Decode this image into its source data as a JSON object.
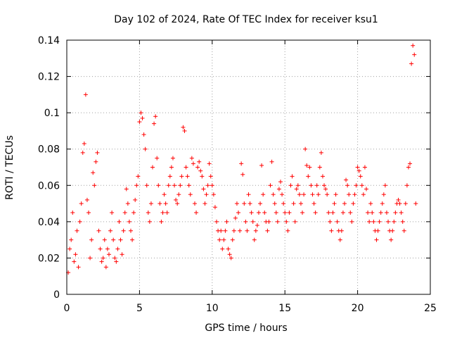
{
  "chart_data": {
    "type": "scatter",
    "title": "Day 102 of 2024, Rate Of TEC Index for receiver ksu1",
    "xlabel": "GPS time / hours",
    "ylabel": "ROTI / TECUs",
    "xlim": [
      0,
      25
    ],
    "ylim": [
      0,
      0.14
    ],
    "xticks": [
      0,
      5,
      10,
      15,
      20,
      25
    ],
    "yticks": [
      0,
      0.02,
      0.04,
      0.06,
      0.08,
      0.1,
      0.12,
      0.14
    ],
    "xtick_labels": [
      "0",
      "5",
      "10",
      "15",
      "20",
      "25"
    ],
    "ytick_labels": [
      "0",
      "0.02",
      "0.04",
      "0.06",
      "0.08",
      "0.1",
      "0.12",
      "0.14"
    ],
    "grid": true,
    "marker": "+",
    "color": "#ff0000",
    "series": [
      {
        "x": [
          0.1,
          0.2,
          0.3,
          0.4,
          0.5,
          0.6,
          0.7,
          0.8,
          0.9,
          1.0,
          1.1,
          1.2,
          1.3,
          1.4,
          1.5,
          1.6,
          1.7,
          1.8,
          1.9,
          2.0,
          2.1,
          2.2,
          2.3,
          2.4,
          2.5,
          2.6,
          2.7,
          2.8,
          2.9,
          3.0,
          3.1,
          3.2,
          3.3,
          3.4,
          3.5,
          3.6,
          3.7,
          3.8,
          3.9,
          4.0,
          4.1,
          4.2,
          4.3,
          4.4,
          4.5,
          4.6,
          4.7,
          4.8,
          4.9,
          5.0,
          5.1,
          5.2,
          5.3,
          5.4,
          5.5,
          5.6,
          5.7,
          5.8,
          5.9,
          6.0,
          6.1,
          6.2,
          6.3,
          6.4,
          6.5,
          6.6,
          6.7,
          6.8,
          6.9,
          7.0,
          7.1,
          7.2,
          7.3,
          7.4,
          7.5,
          7.6,
          7.7,
          7.8,
          7.9,
          8.0,
          8.1,
          8.2,
          8.3,
          8.4,
          8.5,
          8.6,
          8.7,
          8.8,
          8.9,
          9.0,
          9.1,
          9.2,
          9.3,
          9.4,
          9.5,
          9.6,
          9.7,
          9.8,
          9.9,
          10.0,
          10.1,
          10.2,
          10.3,
          10.4,
          10.5,
          10.6,
          10.7,
          10.8,
          10.9,
          11.0,
          11.1,
          11.2,
          11.3,
          11.4,
          11.5,
          11.6,
          11.7,
          11.8,
          11.9,
          12.0,
          12.1,
          12.2,
          12.3,
          12.4,
          12.5,
          12.6,
          12.7,
          12.8,
          12.9,
          13.0,
          13.1,
          13.2,
          13.3,
          13.4,
          13.5,
          13.6,
          13.7,
          13.8,
          13.9,
          14.0,
          14.1,
          14.2,
          14.3,
          14.4,
          14.5,
          14.6,
          14.7,
          14.8,
          14.9,
          15.0,
          15.1,
          15.2,
          15.3,
          15.4,
          15.5,
          15.6,
          15.7,
          15.8,
          15.9,
          16.0,
          16.1,
          16.2,
          16.3,
          16.4,
          16.5,
          16.6,
          16.7,
          16.8,
          16.9,
          17.0,
          17.1,
          17.2,
          17.3,
          17.4,
          17.5,
          17.6,
          17.7,
          17.8,
          17.9,
          18.0,
          18.1,
          18.2,
          18.3,
          18.4,
          18.5,
          18.6,
          18.7,
          18.8,
          18.9,
          19.0,
          19.1,
          19.2,
          19.3,
          19.4,
          19.5,
          19.6,
          19.7,
          19.8,
          19.9,
          20.0,
          20.1,
          20.2,
          20.3,
          20.4,
          20.5,
          20.6,
          20.7,
          20.8,
          20.9,
          21.0,
          21.1,
          21.2,
          21.3,
          21.4,
          21.5,
          21.6,
          21.7,
          21.8,
          21.9,
          22.0,
          22.1,
          22.2,
          22.3,
          22.4,
          22.5,
          22.6,
          22.7,
          22.8,
          22.9,
          23.0,
          23.1,
          23.2,
          23.3,
          23.4,
          23.5,
          23.6,
          23.7,
          23.8,
          23.9,
          24.0
        ],
        "y": [
          0.012,
          0.025,
          0.03,
          0.045,
          0.018,
          0.022,
          0.035,
          0.015,
          0.04,
          0.05,
          0.078,
          0.083,
          0.11,
          0.052,
          0.045,
          0.02,
          0.03,
          0.067,
          0.06,
          0.073,
          0.078,
          0.035,
          0.025,
          0.018,
          0.02,
          0.03,
          0.015,
          0.025,
          0.022,
          0.035,
          0.045,
          0.03,
          0.02,
          0.018,
          0.025,
          0.04,
          0.03,
          0.022,
          0.035,
          0.045,
          0.058,
          0.05,
          0.04,
          0.035,
          0.03,
          0.045,
          0.052,
          0.06,
          0.065,
          0.095,
          0.1,
          0.097,
          0.088,
          0.08,
          0.06,
          0.045,
          0.04,
          0.05,
          0.07,
          0.094,
          0.098,
          0.075,
          0.06,
          0.05,
          0.04,
          0.045,
          0.055,
          0.05,
          0.045,
          0.06,
          0.065,
          0.07,
          0.075,
          0.06,
          0.052,
          0.05,
          0.055,
          0.06,
          0.065,
          0.092,
          0.09,
          0.07,
          0.065,
          0.06,
          0.055,
          0.075,
          0.072,
          0.05,
          0.045,
          0.07,
          0.073,
          0.068,
          0.065,
          0.058,
          0.05,
          0.055,
          0.06,
          0.072,
          0.065,
          0.06,
          0.055,
          0.048,
          0.04,
          0.035,
          0.03,
          0.035,
          0.025,
          0.03,
          0.035,
          0.04,
          0.025,
          0.022,
          0.02,
          0.03,
          0.035,
          0.042,
          0.05,
          0.045,
          0.035,
          0.072,
          0.066,
          0.05,
          0.04,
          0.035,
          0.055,
          0.05,
          0.045,
          0.04,
          0.03,
          0.035,
          0.038,
          0.045,
          0.05,
          0.071,
          0.055,
          0.045,
          0.04,
          0.035,
          0.04,
          0.06,
          0.073,
          0.055,
          0.05,
          0.045,
          0.04,
          0.058,
          0.062,
          0.055,
          0.05,
          0.045,
          0.04,
          0.035,
          0.045,
          0.06,
          0.065,
          0.05,
          0.04,
          0.058,
          0.06,
          0.055,
          0.05,
          0.045,
          0.055,
          0.08,
          0.071,
          0.065,
          0.07,
          0.06,
          0.055,
          0.05,
          0.045,
          0.06,
          0.055,
          0.07,
          0.078,
          0.065,
          0.06,
          0.058,
          0.055,
          0.045,
          0.04,
          0.035,
          0.045,
          0.05,
          0.055,
          0.04,
          0.035,
          0.03,
          0.035,
          0.045,
          0.05,
          0.063,
          0.06,
          0.055,
          0.045,
          0.04,
          0.05,
          0.055,
          0.06,
          0.07,
          0.068,
          0.065,
          0.06,
          0.055,
          0.07,
          0.058,
          0.045,
          0.04,
          0.05,
          0.045,
          0.04,
          0.035,
          0.03,
          0.035,
          0.04,
          0.045,
          0.05,
          0.055,
          0.06,
          0.045,
          0.04,
          0.035,
          0.03,
          0.035,
          0.04,
          0.045,
          0.05,
          0.052,
          0.05,
          0.045,
          0.04,
          0.035,
          0.05,
          0.06,
          0.07,
          0.072,
          0.127,
          0.137,
          0.132,
          0.05
        ]
      }
    ]
  }
}
